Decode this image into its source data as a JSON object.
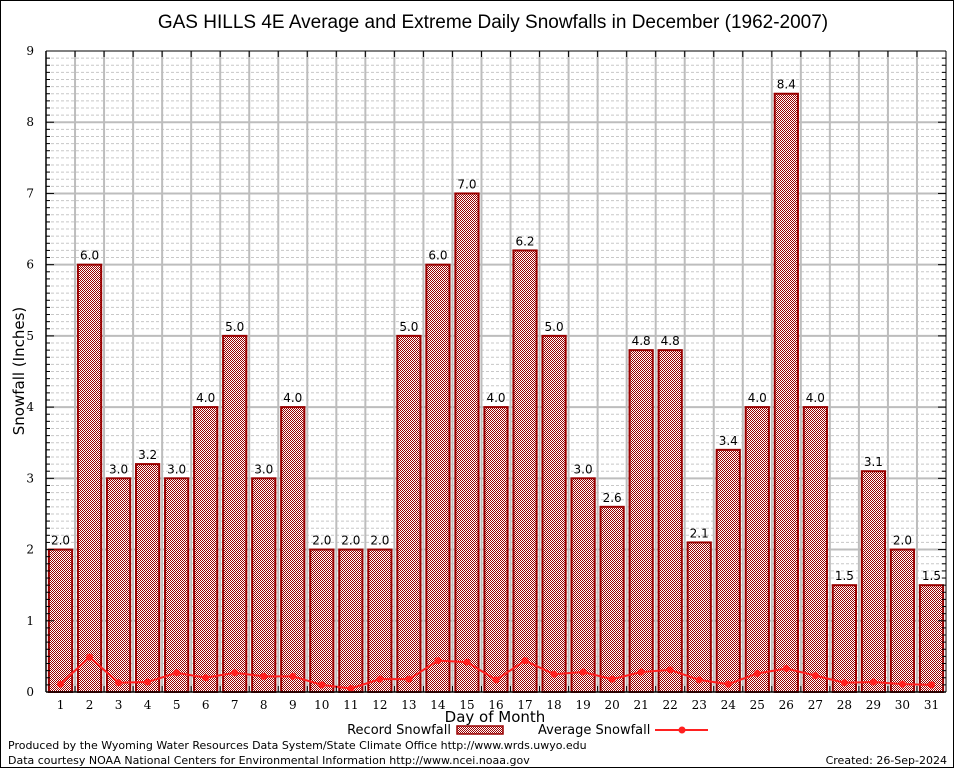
{
  "chart_data": {
    "type": "bar",
    "title": "GAS HILLS 4E Average and Extreme Daily Snowfalls in December (1962-2007)",
    "xlabel": "Day of Month",
    "ylabel": "Snowfall (Inches)",
    "ylim": [
      0,
      9
    ],
    "yticks": [
      "0",
      "1",
      "2",
      "3",
      "4",
      "5",
      "6",
      "7",
      "8",
      "9"
    ],
    "grid": true,
    "categories": [
      "1",
      "2",
      "3",
      "4",
      "5",
      "6",
      "7",
      "8",
      "9",
      "10",
      "11",
      "12",
      "13",
      "14",
      "15",
      "16",
      "17",
      "18",
      "19",
      "20",
      "21",
      "22",
      "23",
      "24",
      "25",
      "26",
      "27",
      "28",
      "29",
      "30",
      "31"
    ],
    "series": [
      {
        "name": "Record Snowfall",
        "type": "bar",
        "color": "#990000",
        "values": [
          2.0,
          6.0,
          3.0,
          3.2,
          3.0,
          4.0,
          5.0,
          3.0,
          4.0,
          2.0,
          2.0,
          2.0,
          5.0,
          6.0,
          7.0,
          4.0,
          6.2,
          5.0,
          3.0,
          2.6,
          4.8,
          4.8,
          2.1,
          3.4,
          4.0,
          8.4,
          4.0,
          1.5,
          3.1,
          2.0,
          1.5
        ],
        "labels": [
          "2.0",
          "6.0",
          "3.0",
          "3.2",
          "3.0",
          "4.0",
          "5.0",
          "3.0",
          "4.0",
          "2.0",
          "2.0",
          "2.0",
          "5.0",
          "6.0",
          "7.0",
          "4.0",
          "6.2",
          "5.0",
          "3.0",
          "2.6",
          "4.8",
          "4.8",
          "2.1",
          "3.4",
          "4.0",
          "8.4",
          "4.0",
          "1.5",
          "3.1",
          "2.0",
          "1.5"
        ]
      },
      {
        "name": "Average Snowfall",
        "type": "line",
        "color": "#ff2020",
        "values": [
          0.11,
          0.49,
          0.13,
          0.14,
          0.27,
          0.2,
          0.27,
          0.22,
          0.22,
          0.1,
          0.05,
          0.18,
          0.18,
          0.44,
          0.42,
          0.17,
          0.44,
          0.25,
          0.28,
          0.18,
          0.28,
          0.31,
          0.17,
          0.11,
          0.26,
          0.33,
          0.23,
          0.13,
          0.14,
          0.11,
          0.1
        ]
      }
    ],
    "legend": "bottom-center"
  },
  "footer": {
    "produced_by": "Produced by the Wyoming Water Resources Data System/State Climate Office http://www.wrds.uwyo.edu",
    "data_courtesy": "Data courtesy NOAA National Centers for Environmental Information http://www.ncei.noaa.gov",
    "created": "Created:  26-Sep-2024"
  }
}
